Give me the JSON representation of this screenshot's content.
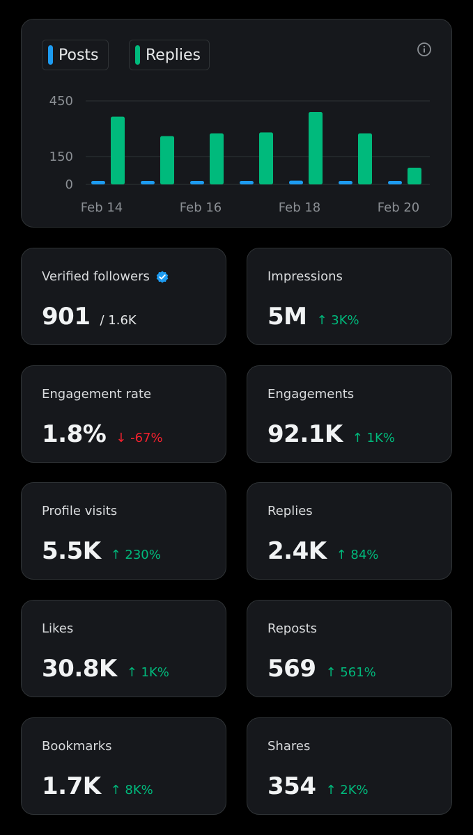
{
  "legend": {
    "posts_label": "Posts",
    "replies_label": "Replies",
    "posts_color": "#1d9bf0",
    "replies_color": "#00ba7c"
  },
  "info_icon": "info-circle-icon",
  "chart_data": {
    "type": "bar",
    "categories": [
      "Feb 14",
      "Feb 15",
      "Feb 16",
      "Feb 17",
      "Feb 18",
      "Feb 19",
      "Feb 20"
    ],
    "x_tick_labels": [
      "Feb 14",
      "Feb 16",
      "Feb 18",
      "Feb 20"
    ],
    "y_ticks": [
      0,
      150,
      450
    ],
    "ylim": [
      0,
      450
    ],
    "grid": true,
    "series": [
      {
        "name": "Posts",
        "color": "#1d9bf0",
        "values": [
          16,
          8,
          16,
          12,
          20,
          8,
          10
        ]
      },
      {
        "name": "Replies",
        "color": "#00ba7c",
        "values": [
          365,
          260,
          275,
          280,
          390,
          275,
          90
        ]
      }
    ]
  },
  "stats": [
    {
      "label": "Verified followers",
      "value": "901",
      "sub": "/ 1.6K",
      "verified": true
    },
    {
      "label": "Impressions",
      "value": "5M",
      "delta": "↑ 3K%",
      "direction": "up"
    },
    {
      "label": "Engagement rate",
      "value": "1.8%",
      "delta": "↓ -67%",
      "direction": "down"
    },
    {
      "label": "Engagements",
      "value": "92.1K",
      "delta": "↑ 1K%",
      "direction": "up"
    },
    {
      "label": "Profile visits",
      "value": "5.5K",
      "delta": "↑ 230%",
      "direction": "up"
    },
    {
      "label": "Replies",
      "value": "2.4K",
      "delta": "↑ 84%",
      "direction": "up"
    },
    {
      "label": "Likes",
      "value": "30.8K",
      "delta": "↑ 1K%",
      "direction": "up"
    },
    {
      "label": "Reposts",
      "value": "569",
      "delta": "↑ 561%",
      "direction": "up"
    },
    {
      "label": "Bookmarks",
      "value": "1.7K",
      "delta": "↑ 8K%",
      "direction": "up"
    },
    {
      "label": "Shares",
      "value": "354",
      "delta": "↑ 2K%",
      "direction": "up"
    }
  ]
}
